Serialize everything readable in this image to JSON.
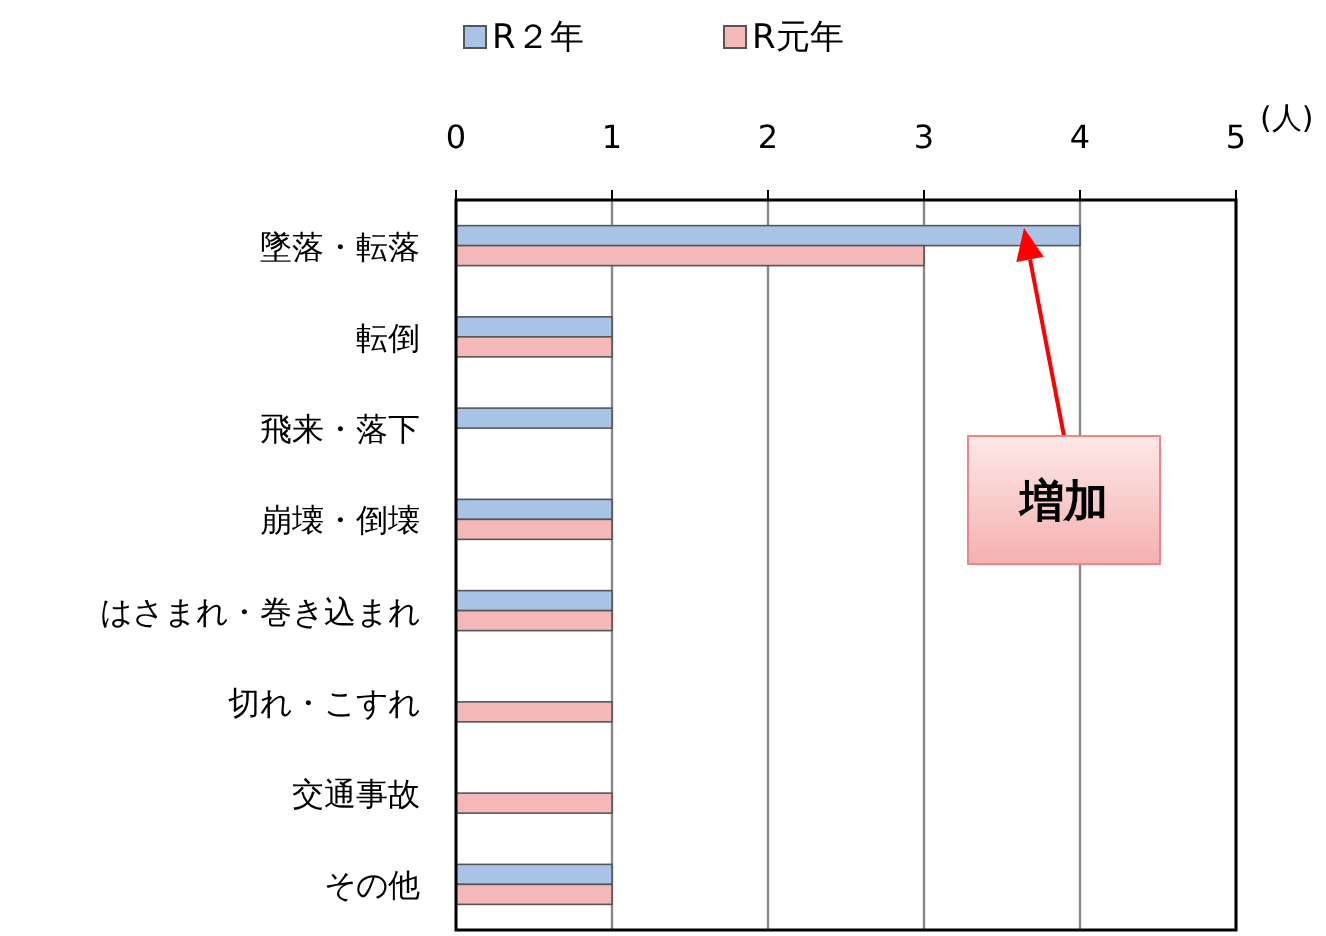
{
  "chart_data": {
    "type": "bar",
    "orientation": "horizontal",
    "categories": [
      "墜落・転落",
      "転倒",
      "飛来・落下",
      "崩壊・倒壊",
      "はさまれ・巻き込まれ",
      "切れ・こすれ",
      "交通事故",
      "その他"
    ],
    "series": [
      {
        "name": "R２年",
        "color": "#a9c3e6",
        "values": [
          4,
          1,
          1,
          1,
          1,
          0,
          0,
          1
        ]
      },
      {
        "name": "R元年",
        "color": "#f5b8b8",
        "values": [
          3,
          1,
          0,
          1,
          1,
          1,
          1,
          1
        ]
      }
    ],
    "xlabel": "(人)",
    "xlim": [
      0,
      5
    ],
    "xticks": [
      0,
      1,
      2,
      3,
      4,
      5
    ],
    "grid": "x",
    "legend": "top",
    "annotations": [
      "増加"
    ]
  }
}
